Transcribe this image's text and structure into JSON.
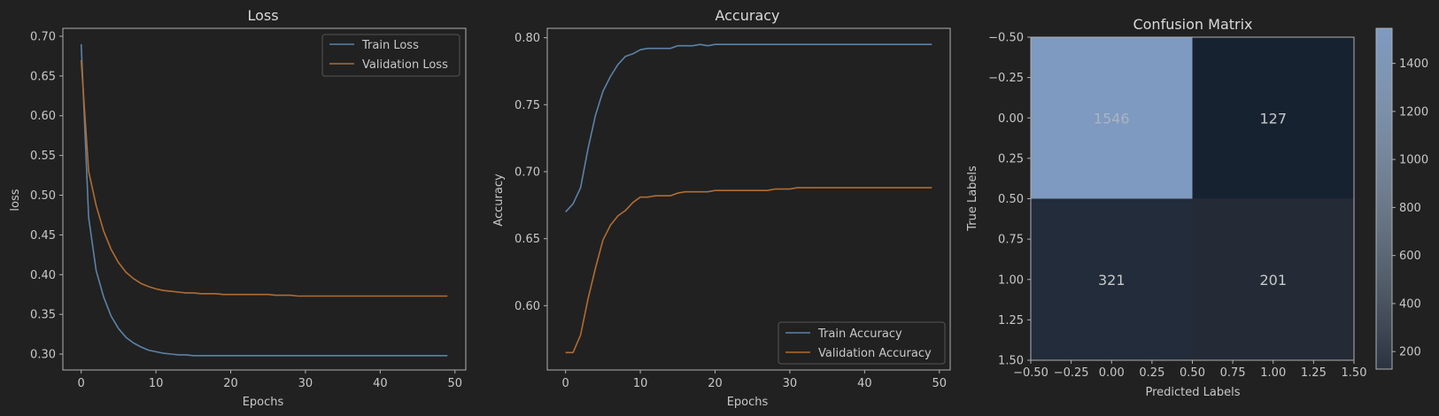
{
  "colors": {
    "background": "#212121",
    "axes_edge": "#b0b0b0",
    "text": "#c8c8c8",
    "train": "#5b82a8",
    "validation": "#b06c32",
    "cmap_low": "#e6ecf4",
    "cmap_high": "#7e9ac0"
  },
  "chart_data": [
    {
      "type": "line",
      "title": "Loss",
      "xlabel": "Epochs",
      "ylabel": "loss",
      "xlim": [
        -2.45,
        51.45
      ],
      "ylim": [
        0.28,
        0.71
      ],
      "xticks": [
        0,
        10,
        20,
        30,
        40,
        50
      ],
      "yticks": [
        0.3,
        0.35,
        0.4,
        0.45,
        0.5,
        0.55,
        0.6,
        0.65,
        0.7
      ],
      "ytick_labels": [
        "0.30",
        "0.35",
        "0.40",
        "0.45",
        "0.50",
        "0.55",
        "0.60",
        "0.65",
        "0.70"
      ],
      "legend_position": "top-right",
      "x": [
        0,
        1,
        2,
        3,
        4,
        5,
        6,
        7,
        8,
        9,
        10,
        11,
        12,
        13,
        14,
        15,
        16,
        17,
        18,
        19,
        20,
        21,
        22,
        23,
        24,
        25,
        26,
        27,
        28,
        29,
        30,
        31,
        32,
        33,
        34,
        35,
        36,
        37,
        38,
        39,
        40,
        41,
        42,
        43,
        44,
        45,
        46,
        47,
        48,
        49
      ],
      "series": [
        {
          "name": "Train Loss",
          "color": "#5b82a8",
          "values": [
            0.69,
            0.472,
            0.405,
            0.372,
            0.348,
            0.332,
            0.321,
            0.314,
            0.309,
            0.305,
            0.303,
            0.301,
            0.3,
            0.299,
            0.299,
            0.298,
            0.298,
            0.298,
            0.298,
            0.298,
            0.298,
            0.298,
            0.298,
            0.298,
            0.298,
            0.298,
            0.298,
            0.298,
            0.298,
            0.298,
            0.298,
            0.298,
            0.298,
            0.298,
            0.298,
            0.298,
            0.298,
            0.298,
            0.298,
            0.298,
            0.298,
            0.298,
            0.298,
            0.298,
            0.298,
            0.298,
            0.298,
            0.298,
            0.298,
            0.298
          ]
        },
        {
          "name": "Validation Loss",
          "color": "#b06c32",
          "values": [
            0.67,
            0.53,
            0.487,
            0.455,
            0.432,
            0.415,
            0.403,
            0.395,
            0.389,
            0.385,
            0.382,
            0.38,
            0.379,
            0.378,
            0.377,
            0.377,
            0.376,
            0.376,
            0.376,
            0.375,
            0.375,
            0.375,
            0.375,
            0.375,
            0.375,
            0.375,
            0.374,
            0.374,
            0.374,
            0.373,
            0.373,
            0.373,
            0.373,
            0.373,
            0.373,
            0.373,
            0.373,
            0.373,
            0.373,
            0.373,
            0.373,
            0.373,
            0.373,
            0.373,
            0.373,
            0.373,
            0.373,
            0.373,
            0.373,
            0.373
          ]
        }
      ]
    },
    {
      "type": "line",
      "title": "Accuracy",
      "xlabel": "Epochs",
      "ylabel": "Accuracy",
      "xlim": [
        -2.45,
        51.45
      ],
      "ylim": [
        0.552,
        0.807
      ],
      "xticks": [
        0,
        10,
        20,
        30,
        40,
        50
      ],
      "yticks": [
        0.6,
        0.65,
        0.7,
        0.75,
        0.8
      ],
      "ytick_labels": [
        "0.60",
        "0.65",
        "0.70",
        "0.75",
        "0.80"
      ],
      "legend_position": "bottom-right",
      "x": [
        0,
        1,
        2,
        3,
        4,
        5,
        6,
        7,
        8,
        9,
        10,
        11,
        12,
        13,
        14,
        15,
        16,
        17,
        18,
        19,
        20,
        21,
        22,
        23,
        24,
        25,
        26,
        27,
        28,
        29,
        30,
        31,
        32,
        33,
        34,
        35,
        36,
        37,
        38,
        39,
        40,
        41,
        42,
        43,
        44,
        45,
        46,
        47,
        48,
        49
      ],
      "series": [
        {
          "name": "Train Accuracy",
          "color": "#5b82a8",
          "values": [
            0.67,
            0.676,
            0.688,
            0.717,
            0.742,
            0.76,
            0.771,
            0.78,
            0.786,
            0.788,
            0.791,
            0.792,
            0.792,
            0.792,
            0.792,
            0.794,
            0.794,
            0.794,
            0.795,
            0.794,
            0.795,
            0.795,
            0.795,
            0.795,
            0.795,
            0.795,
            0.795,
            0.795,
            0.795,
            0.795,
            0.795,
            0.795,
            0.795,
            0.795,
            0.795,
            0.795,
            0.795,
            0.795,
            0.795,
            0.795,
            0.795,
            0.795,
            0.795,
            0.795,
            0.795,
            0.795,
            0.795,
            0.795,
            0.795,
            0.795
          ]
        },
        {
          "name": "Validation Accuracy",
          "color": "#b06c32",
          "values": [
            0.565,
            0.565,
            0.578,
            0.605,
            0.628,
            0.649,
            0.66,
            0.667,
            0.671,
            0.677,
            0.681,
            0.681,
            0.682,
            0.682,
            0.682,
            0.684,
            0.685,
            0.685,
            0.685,
            0.685,
            0.686,
            0.686,
            0.686,
            0.686,
            0.686,
            0.686,
            0.686,
            0.686,
            0.687,
            0.687,
            0.687,
            0.688,
            0.688,
            0.688,
            0.688,
            0.688,
            0.688,
            0.688,
            0.688,
            0.688,
            0.688,
            0.688,
            0.688,
            0.688,
            0.688,
            0.688,
            0.688,
            0.688,
            0.688,
            0.688
          ]
        }
      ]
    },
    {
      "type": "heatmap",
      "title": "Confusion Matrix",
      "xlabel": "Predicted Labels",
      "ylabel": "True Labels",
      "xlim": [
        -0.5,
        1.5
      ],
      "ylim": [
        1.5,
        -0.5
      ],
      "xticks": [
        -0.5,
        -0.25,
        0.0,
        0.25,
        0.5,
        0.75,
        1.0,
        1.25,
        1.5
      ],
      "xtick_labels": [
        "−0.50",
        "−0.25",
        "0.00",
        "0.25",
        "0.50",
        "0.75",
        "1.00",
        "1.25",
        "1.50"
      ],
      "yticks": [
        -0.5,
        -0.25,
        0.0,
        0.25,
        0.5,
        0.75,
        1.0,
        1.25,
        1.5
      ],
      "ytick_labels": [
        "−0.50",
        "−0.25",
        "0.00",
        "0.25",
        "0.50",
        "0.75",
        "1.00",
        "1.25",
        "1.50"
      ],
      "matrix": [
        [
          1546,
          127
        ],
        [
          321,
          201
        ]
      ],
      "cell_colors": [
        [
          "#7e9ac0",
          "#172231"
        ],
        [
          "#222c3a",
          "#242b36"
        ]
      ],
      "cell_text_colors": [
        [
          "#aab4c4",
          "#c8c8c8"
        ],
        [
          "#c8c8c8",
          "#c8c8c8"
        ]
      ],
      "colorbar": {
        "min": 127,
        "max": 1546,
        "ticks": [
          200,
          400,
          600,
          800,
          1000,
          1200,
          1400
        ],
        "tick_labels": [
          "200",
          "400",
          "600",
          "800",
          "1000",
          "1200",
          "1400"
        ]
      }
    }
  ]
}
